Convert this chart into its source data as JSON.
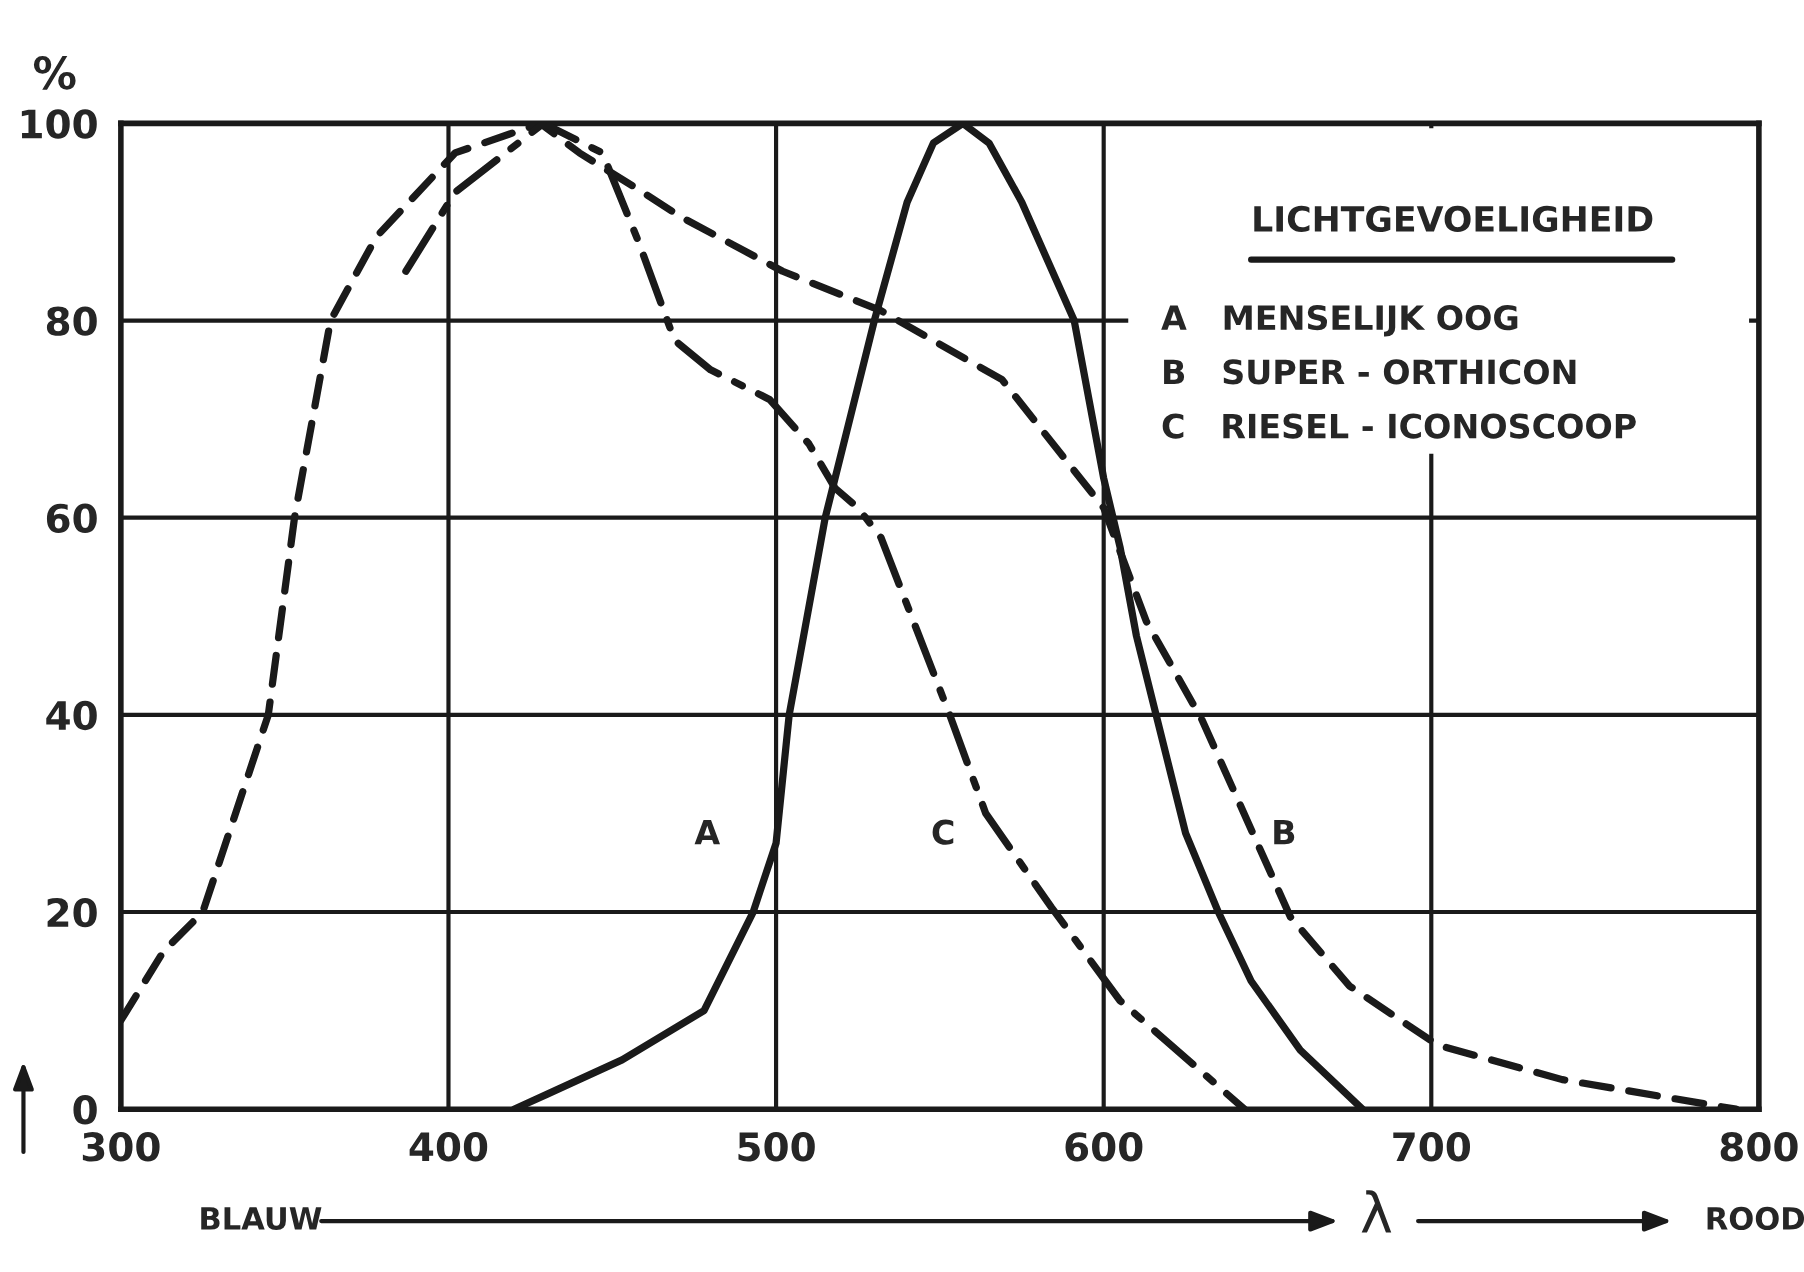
{
  "chart_data": {
    "type": "line",
    "ylabel": "%",
    "xlabel": "λ",
    "xlim": [
      300,
      800
    ],
    "xticks": [
      300,
      400,
      500,
      600,
      700,
      800
    ],
    "ylim": [
      0,
      100
    ],
    "yticks": [
      0,
      20,
      40,
      60,
      80,
      100
    ],
    "grid": true,
    "legend": false,
    "marker": "none",
    "series": [
      {
        "name": "A",
        "color": "#1a1a1a",
        "line_style": "solid",
        "x": [
          420,
          430,
          453,
          478,
          493,
          500,
          504,
          515,
          530,
          540,
          548,
          557,
          565,
          575,
          591,
          600,
          605,
          610,
          616,
          625,
          635,
          645,
          660,
          679
        ],
        "values": [
          0,
          1.5,
          5,
          10,
          20,
          27,
          40,
          60,
          80,
          92,
          98,
          100,
          98,
          92,
          80,
          64,
          57,
          48,
          40,
          28,
          20,
          13,
          6,
          0
        ]
      },
      {
        "name": "B",
        "color": "#1a1a1a",
        "line_style": "dashed",
        "x": [
          300,
          313,
          325,
          345,
          353,
          364,
          378,
          402,
          428,
          440,
          457,
          471,
          502,
          532,
          569,
          600,
          613,
          630,
          657,
          675,
          702,
          740,
          793
        ],
        "values": [
          9,
          16,
          20,
          40,
          60,
          80,
          88.5,
          97,
          100,
          97,
          93.5,
          90.5,
          85,
          81,
          74,
          61,
          49.5,
          39.5,
          19.5,
          12.5,
          6.5,
          3,
          0
        ]
      },
      {
        "name": "C",
        "color": "#1a1a1a",
        "line_style": "dashdot",
        "x": [
          387,
          402,
          429,
          447,
          458,
          469,
          480,
          498,
          510,
          518,
          525,
          532,
          553,
          564,
          584,
          605,
          643
        ],
        "values": [
          85,
          93,
          100,
          97,
          88,
          78,
          75,
          72,
          67.5,
          63,
          61,
          58,
          40,
          30,
          20.5,
          11,
          0
        ]
      }
    ],
    "annotations": [
      "LICHTGEVOELIGHEID",
      "A   MENSELIJK OOG",
      "B   SUPER - ORTHICON",
      "C   RIESEL - ICONOSCOOP",
      "BLAUW",
      "ROOD"
    ]
  }
}
